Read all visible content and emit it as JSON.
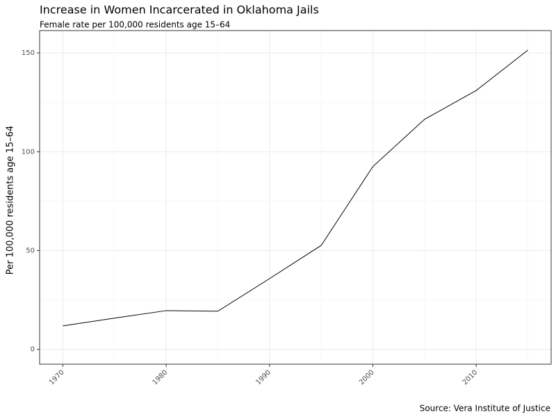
{
  "chart_data": {
    "type": "line",
    "title": "Increase in Women Incarcerated in Oklahoma Jails",
    "subtitle": "Female rate per 100,000 residents age 15–64",
    "y_label": "Per 100,000 residents age 15–64",
    "caption": "Source: Vera Institute of Justice",
    "x": [
      1970,
      1975,
      1980,
      1985,
      1990,
      1995,
      2000,
      2005,
      2010,
      2015
    ],
    "series": [
      {
        "name": "Female rate",
        "color": "#000000",
        "values": [
          11.9,
          15.8,
          19.6,
          19.3,
          35.8,
          52.6,
          92.5,
          116.4,
          131,
          151.4
        ]
      }
    ],
    "xlim": [
      1967.75,
      2017.25
    ],
    "xticks": [
      1970,
      1980,
      1990,
      2000,
      2010
    ],
    "ylim": [
      -7.5,
      161.3
    ],
    "yticks": [
      0,
      50,
      100,
      150
    ],
    "grid": true
  }
}
